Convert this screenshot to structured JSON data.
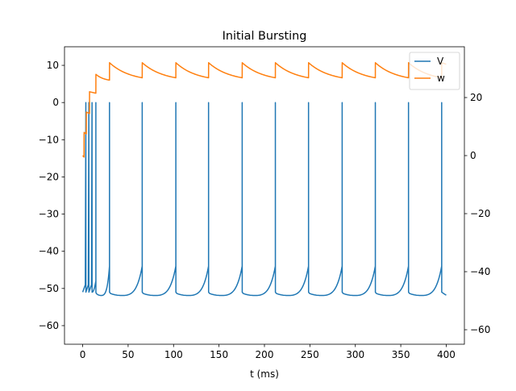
{
  "chart_data": {
    "type": "line",
    "title": "Initial Bursting",
    "xlabel": "t (ms)",
    "ylabel_left": "",
    "ylabel_right": "",
    "xlim": [
      -20,
      420
    ],
    "ylim_left": [
      -65,
      15
    ],
    "ylim_right": [
      -65,
      37.5
    ],
    "x_ticks": [
      0,
      50,
      100,
      150,
      200,
      250,
      300,
      350,
      400
    ],
    "y_ticks_left": [
      -60,
      -50,
      -40,
      -30,
      -20,
      -10,
      0,
      10
    ],
    "y_ticks_right": [
      -60,
      -40,
      -20,
      0,
      20
    ],
    "grid": false,
    "legend_position": "upper right",
    "colors": {
      "V": "#1f77b4",
      "w": "#ff7f0e"
    },
    "series": [
      {
        "name": "V",
        "axis": "left",
        "spike_peak": 0,
        "reset": -51,
        "burst_spikes_t": [
          3.5,
          6.8,
          10.3
        ],
        "spikes_t": [
          14.5,
          29.5,
          65.5,
          102.5,
          138.5,
          175.5,
          212.0,
          248.5,
          285.5,
          322.0,
          358.5,
          395.0
        ],
        "trough": -52,
        "end": {
          "t": 400,
          "value": -51.8
        }
      },
      {
        "name": "w",
        "axis": "right",
        "start": {
          "t": 0,
          "value": 0
        },
        "jumps": [
          {
            "t": 1.5,
            "to": 8
          },
          {
            "t": 4,
            "to": 15
          },
          {
            "t": 7.5,
            "to": 22
          },
          {
            "t": 14.5,
            "to": 28
          },
          {
            "t": 29.5,
            "to": 32
          },
          {
            "t": 65.5,
            "to": 32
          },
          {
            "t": 102.5,
            "to": 32
          },
          {
            "t": 138.5,
            "to": 32
          },
          {
            "t": 175.5,
            "to": 32
          },
          {
            "t": 212.0,
            "to": 32
          },
          {
            "t": 248.5,
            "to": 32
          },
          {
            "t": 285.5,
            "to": 32
          },
          {
            "t": 322.0,
            "to": 32
          },
          {
            "t": 358.5,
            "to": 32
          },
          {
            "t": 395.0,
            "to": 32
          }
        ],
        "pre_jump_min": 25.5,
        "end": {
          "t": 400,
          "value": 31.5
        }
      }
    ]
  }
}
